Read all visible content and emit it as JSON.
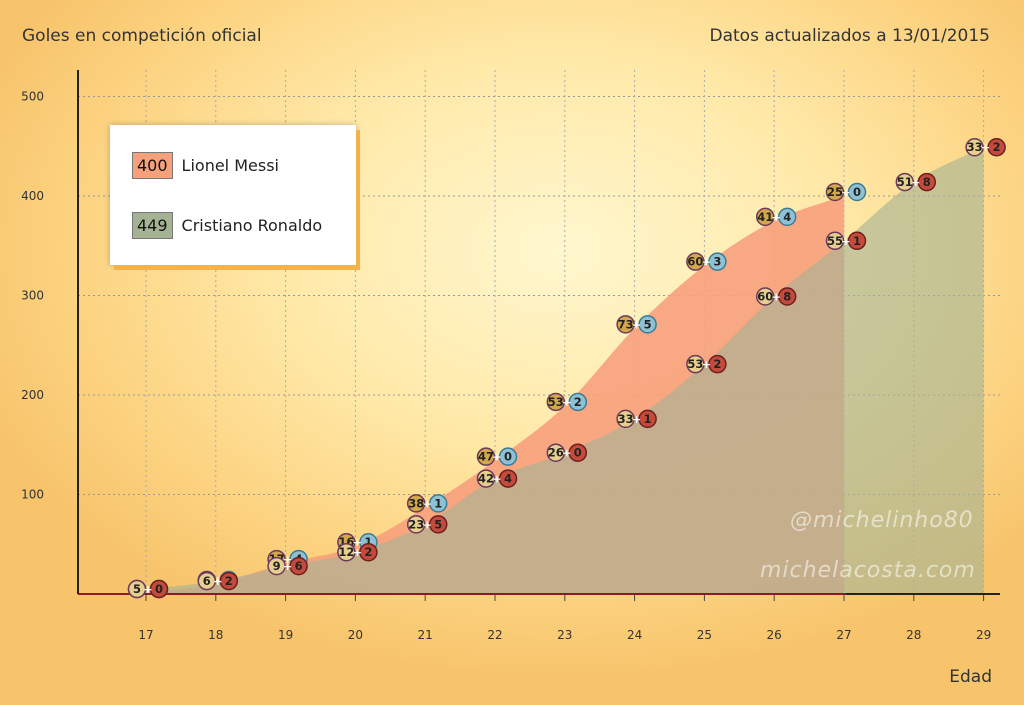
{
  "header": {
    "title": "Goles en competición oficial",
    "updated": "Datos actualizados a 13/01/2015"
  },
  "watermarks": [
    "@michelinho80",
    "michelacosta.com"
  ],
  "legend": [
    {
      "value": "400",
      "name": "Lionel Messi",
      "color": "#f7a07c"
    },
    {
      "value": "449",
      "name": "Cristiano Ronaldo",
      "color": "#a5b394"
    }
  ],
  "chart_data": {
    "type": "area",
    "xlabel": "Edad",
    "ylabel": "",
    "x": [
      17,
      18,
      19,
      20,
      21,
      22,
      23,
      24,
      25,
      26,
      27,
      28,
      29
    ],
    "ylim": [
      0,
      500
    ],
    "yticks": [
      100,
      200,
      300,
      400,
      500
    ],
    "grid": true,
    "legend_position": "top-left",
    "series": [
      {
        "name": "Lionel Messi",
        "color": "#f7a07c",
        "cumulative": [
          1,
          10,
          31,
          48,
          87,
          134,
          189,
          267,
          330,
          375,
          400
        ],
        "season_labels": [
          "1 + 0",
          "8 + 1",
          "17 + 4",
          "16 + 1",
          "38 + 1",
          "47 + 0",
          "53 + 2",
          "73 + 5",
          "60 + 3",
          "41 + 4",
          "25 + 0"
        ]
      },
      {
        "name": "Cristiano Ronaldo",
        "color": "#a5b394",
        "cumulative": [
          5,
          13,
          28,
          42,
          70,
          116,
          142,
          176,
          231,
          299,
          355,
          414,
          449
        ],
        "season_labels": [
          "5 + 0",
          "6 + 2",
          "9 + 6",
          "12 + 2",
          "23 + 5",
          "42 + 4",
          "26 + 0",
          "33 + 1",
          "53 + 2",
          "60 + 8",
          "55 + 1",
          "51 + 8",
          "33 + 2"
        ]
      }
    ]
  }
}
